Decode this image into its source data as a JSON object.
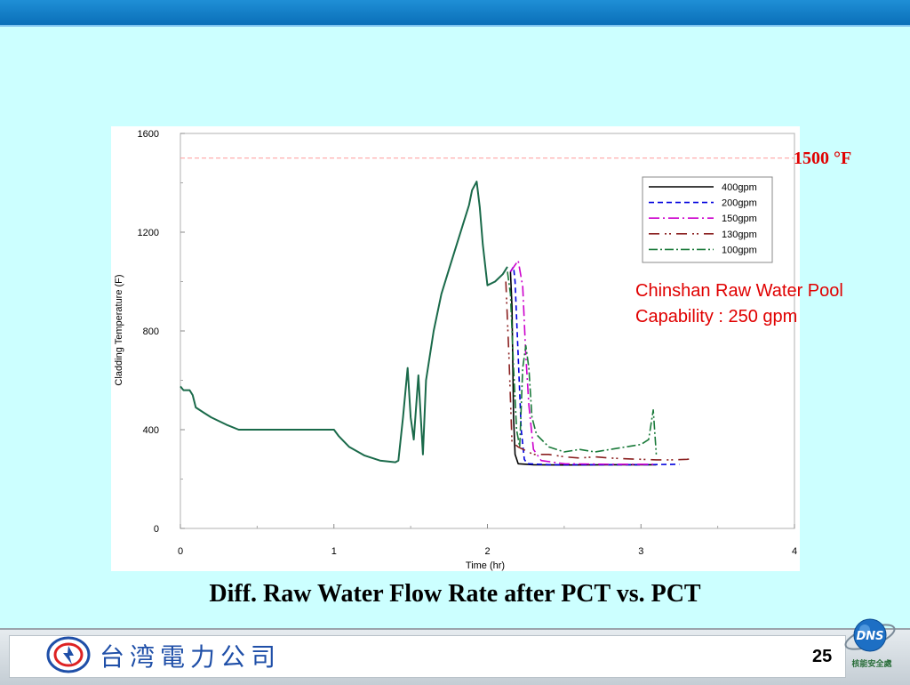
{
  "slide": {
    "title": "Diff.  Raw Water Flow Rate after PCT vs. PCT",
    "threshold_label": "1500 °F",
    "annotation_line1": "Chinshan Raw Water Pool",
    "annotation_line2": "Capability : 250 gpm",
    "page_number": "25",
    "company_name": "台湾電力公司",
    "dns_logo_text": "DNS",
    "dns_caption": "核能安全處",
    "colors": {
      "background": "#ccffff",
      "top_bar": "#0a6fb8",
      "annotation": "#e00000"
    }
  },
  "chart_data": {
    "type": "line",
    "title": "",
    "xlabel": "Time (hr)",
    "ylabel": "Cladding Temperature (F)",
    "xlim": [
      0,
      4
    ],
    "ylim": [
      0,
      1600
    ],
    "xticks": [
      0,
      1,
      2,
      3,
      4
    ],
    "yticks": [
      0,
      400,
      800,
      1200,
      1600
    ],
    "x_tick_labels": [
      "0",
      "1",
      "2",
      "3",
      "4"
    ],
    "y_tick_labels": [
      "0",
      "400",
      "800",
      "1200",
      "1600"
    ],
    "grid": false,
    "legend_position": "top-right",
    "reference_line": {
      "y": 1500,
      "color": "#ff9999"
    },
    "common_path": [
      [
        0.0,
        575
      ],
      [
        0.02,
        560
      ],
      [
        0.06,
        560
      ],
      [
        0.08,
        540
      ],
      [
        0.1,
        490
      ],
      [
        0.15,
        470
      ],
      [
        0.2,
        450
      ],
      [
        0.3,
        420
      ],
      [
        0.38,
        400
      ],
      [
        0.6,
        400
      ],
      [
        0.8,
        400
      ],
      [
        1.0,
        400
      ],
      [
        1.03,
        375
      ],
      [
        1.1,
        330
      ],
      [
        1.2,
        295
      ],
      [
        1.3,
        275
      ],
      [
        1.4,
        268
      ],
      [
        1.42,
        275
      ],
      [
        1.45,
        450
      ],
      [
        1.48,
        650
      ],
      [
        1.5,
        450
      ],
      [
        1.52,
        360
      ],
      [
        1.55,
        620
      ],
      [
        1.58,
        300
      ],
      [
        1.6,
        600
      ],
      [
        1.65,
        800
      ],
      [
        1.7,
        950
      ],
      [
        1.75,
        1050
      ],
      [
        1.8,
        1150
      ],
      [
        1.85,
        1250
      ],
      [
        1.88,
        1310
      ],
      [
        1.9,
        1370
      ],
      [
        1.93,
        1405
      ],
      [
        1.95,
        1300
      ],
      [
        1.97,
        1150
      ],
      [
        2.0,
        985
      ],
      [
        2.05,
        1000
      ],
      [
        2.1,
        1030
      ],
      [
        2.13,
        1060
      ]
    ],
    "series": [
      {
        "name": "400gpm",
        "color": "#000000",
        "dash": "",
        "values": [
          [
            2.15,
            1040
          ],
          [
            2.16,
            900
          ],
          [
            2.17,
            450
          ],
          [
            2.18,
            300
          ],
          [
            2.2,
            262
          ],
          [
            2.3,
            258
          ],
          [
            2.5,
            257
          ],
          [
            2.8,
            258
          ],
          [
            3.1,
            258
          ]
        ]
      },
      {
        "name": "200gpm",
        "color": "#0000dd",
        "dash": "6,4",
        "values": [
          [
            2.15,
            1040
          ],
          [
            2.17,
            1060
          ],
          [
            2.18,
            1000
          ],
          [
            2.2,
            700
          ],
          [
            2.22,
            400
          ],
          [
            2.24,
            280
          ],
          [
            2.26,
            262
          ],
          [
            2.4,
            258
          ],
          [
            2.7,
            258
          ],
          [
            3.0,
            258
          ],
          [
            3.25,
            260
          ]
        ]
      },
      {
        "name": "150gpm",
        "color": "#cc00cc",
        "dash": "12,4,2,4",
        "values": [
          [
            2.15,
            1040
          ],
          [
            2.2,
            1085
          ],
          [
            2.23,
            980
          ],
          [
            2.25,
            700
          ],
          [
            2.27,
            500
          ],
          [
            2.3,
            320
          ],
          [
            2.35,
            275
          ],
          [
            2.5,
            262
          ],
          [
            2.8,
            260
          ],
          [
            3.1,
            260
          ]
        ]
      },
      {
        "name": "130gpm",
        "color": "#8b2020",
        "dash": "12,6,2,3,2,6",
        "values": [
          [
            2.12,
            1000
          ],
          [
            2.14,
            700
          ],
          [
            2.16,
            350
          ],
          [
            2.2,
            330
          ],
          [
            2.3,
            300
          ],
          [
            2.4,
            300
          ],
          [
            2.5,
            290
          ],
          [
            2.6,
            285
          ],
          [
            2.7,
            290
          ],
          [
            2.8,
            285
          ],
          [
            2.9,
            282
          ],
          [
            3.0,
            280
          ],
          [
            3.1,
            278
          ],
          [
            3.2,
            278
          ],
          [
            3.3,
            280
          ],
          [
            3.33,
            282
          ]
        ]
      },
      {
        "name": "100gpm",
        "color": "#1a7a3a",
        "dash": "10,3,2,3",
        "values": [
          [
            2.13,
            1040
          ],
          [
            2.15,
            950
          ],
          [
            2.17,
            650
          ],
          [
            2.19,
            400
          ],
          [
            2.21,
            330
          ],
          [
            2.23,
            650
          ],
          [
            2.25,
            740
          ],
          [
            2.27,
            650
          ],
          [
            2.29,
            450
          ],
          [
            2.32,
            380
          ],
          [
            2.4,
            330
          ],
          [
            2.5,
            310
          ],
          [
            2.6,
            320
          ],
          [
            2.7,
            310
          ],
          [
            2.8,
            320
          ],
          [
            2.9,
            330
          ],
          [
            3.0,
            340
          ],
          [
            3.05,
            360
          ],
          [
            3.08,
            480
          ],
          [
            3.1,
            300
          ]
        ]
      }
    ]
  }
}
